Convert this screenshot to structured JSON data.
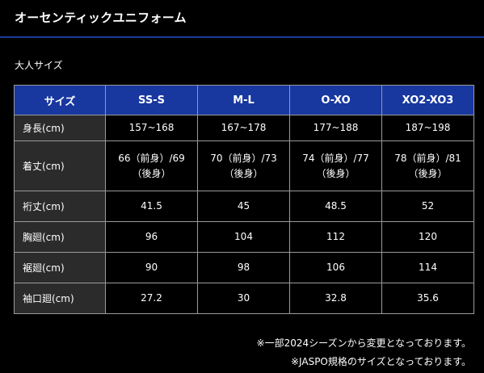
{
  "page": {
    "title": "オーセンティックユニフォーム",
    "subtitle": "大人サイズ",
    "accent_color": "#1838a0"
  },
  "table": {
    "headers": [
      "サイズ",
      "SS-S",
      "M-L",
      "O-XO",
      "XO2-XO3"
    ],
    "rows": [
      {
        "label": "身長(cm)",
        "cells": [
          "157~168",
          "167~178",
          "177~188",
          "187~198"
        ]
      },
      {
        "label": "着丈(cm)",
        "cells": [
          {
            "l1": "66（前身）/69",
            "l2": "（後身）"
          },
          {
            "l1": "70（前身）/73",
            "l2": "（後身）"
          },
          {
            "l1": "74（前身）/77",
            "l2": "（後身）"
          },
          {
            "l1": "78（前身）/81",
            "l2": "（後身）"
          }
        ]
      },
      {
        "label": "裄丈(cm)",
        "cells": [
          "41.5",
          "45",
          "48.5",
          "52"
        ]
      },
      {
        "label": "胸廻(cm)",
        "cells": [
          "96",
          "104",
          "112",
          "120"
        ]
      },
      {
        "label": "裾廻(cm)",
        "cells": [
          "90",
          "98",
          "106",
          "114"
        ]
      },
      {
        "label": "袖口廻(cm)",
        "cells": [
          "27.2",
          "30",
          "32.8",
          "35.6"
        ]
      }
    ]
  },
  "notes": [
    "※一部2024シーズンから変更となっております。",
    "※JASPO規格のサイズとなっております。"
  ]
}
